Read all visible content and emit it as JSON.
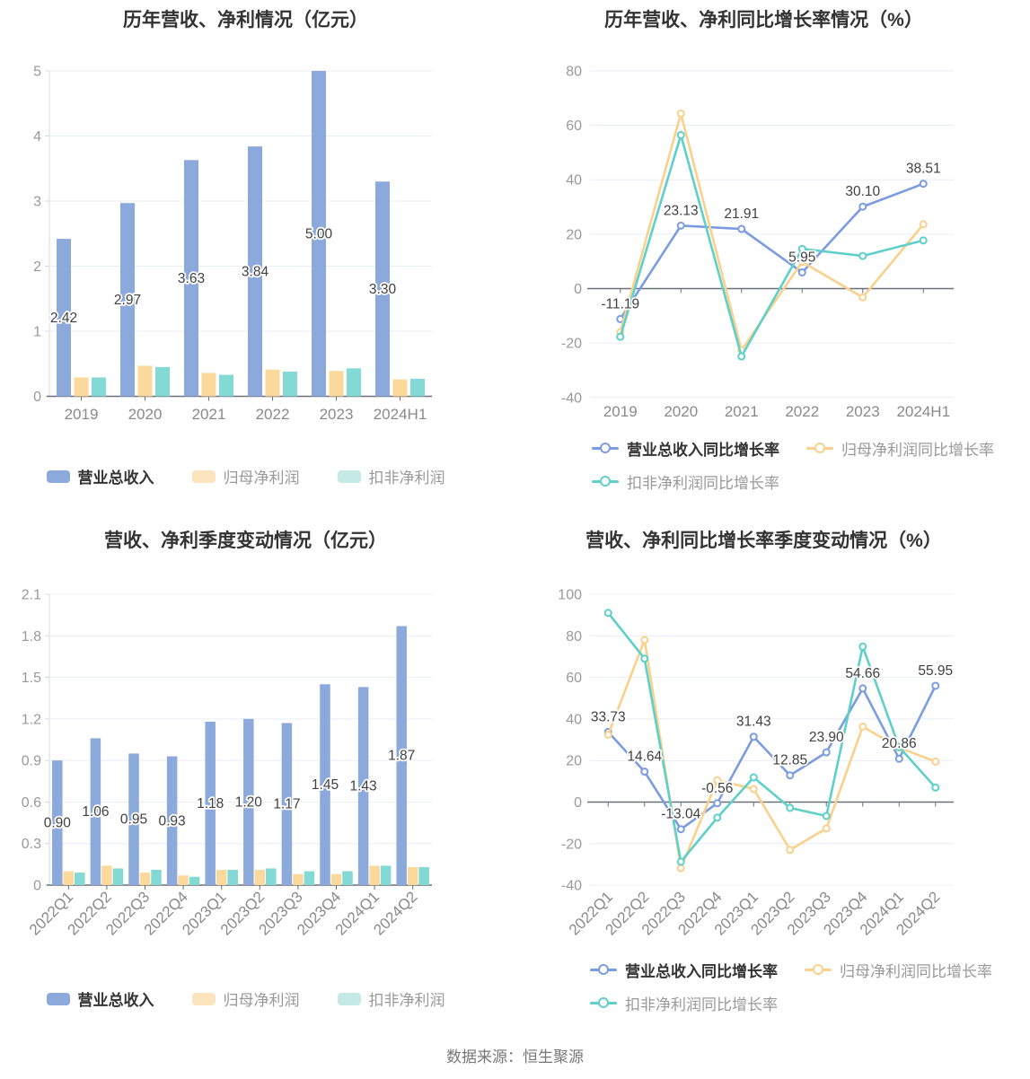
{
  "page": {
    "source_text": "数据来源：恒生聚源"
  },
  "colors": {
    "revenue_bar": "#8CA9DC",
    "net_profit_bar": "#FBD99D",
    "deducted_profit_bar": "#83D9D3",
    "revenue_line": "#7B9CE0",
    "net_profit_line": "#F9D18C",
    "deducted_profit_line": "#5ED0C9",
    "grid_line": "#E9EDF5",
    "axis_dark": "#6E7079",
    "axis_light": "#D7DBE3",
    "axis_text": "#999999",
    "value_label_text": "#404040",
    "title_text": "#333333"
  },
  "chart_data": [
    {
      "id": "annual-amounts",
      "type": "bar",
      "title": "历年营收、净利情况（亿元）",
      "categories": [
        "2019",
        "2020",
        "2021",
        "2022",
        "2023",
        "2024H1"
      ],
      "series": [
        {
          "name": "营业总收入",
          "values": [
            2.42,
            2.97,
            3.63,
            3.84,
            5.0,
            3.3
          ],
          "labels": [
            "2.42",
            "2.97",
            "3.63",
            "3.84",
            "5.00",
            "3.30"
          ]
        },
        {
          "name": "归母净利润",
          "values": [
            0.29,
            0.47,
            0.36,
            0.41,
            0.39,
            0.26
          ]
        },
        {
          "name": "扣非净利润",
          "values": [
            0.29,
            0.45,
            0.33,
            0.38,
            0.43,
            0.27
          ]
        }
      ],
      "ylim": [
        0,
        5
      ],
      "yticks": [
        5,
        4,
        3,
        2,
        1,
        0
      ],
      "ytick_labels": [
        "5",
        "4",
        "3",
        "2",
        "1",
        "0"
      ],
      "grid": true,
      "legend_position": "bottom"
    },
    {
      "id": "annual-growth-rates",
      "type": "line",
      "title": "历年营收、净利同比增长率情况（%）",
      "categories": [
        "2019",
        "2020",
        "2021",
        "2022",
        "2023",
        "2024H1"
      ],
      "series": [
        {
          "name": "营业总收入同比增长率",
          "values": [
            -11.19,
            23.13,
            21.91,
            5.95,
            30.1,
            38.51
          ],
          "labels": [
            "-11.19",
            "23.13",
            "21.91",
            "5.95",
            "30.10",
            "38.51"
          ]
        },
        {
          "name": "归母净利润同比增长率",
          "values": [
            -16.0,
            64.3,
            -22.6,
            9.8,
            -3.2,
            23.6
          ]
        },
        {
          "name": "扣非净利润同比增长率",
          "values": [
            -17.7,
            56.4,
            -24.9,
            14.6,
            12.0,
            17.7
          ]
        }
      ],
      "ylim": [
        -40,
        80
      ],
      "yticks": [
        80,
        60,
        40,
        20,
        0,
        -20,
        -40
      ],
      "ytick_labels": [
        "80",
        "60",
        "40",
        "20",
        "0",
        "-20",
        "-40"
      ],
      "grid": true,
      "legend_position": "bottom"
    },
    {
      "id": "quarterly-amounts",
      "type": "bar",
      "title": "营收、净利季度变动情况（亿元）",
      "categories": [
        "2022Q1",
        "2022Q2",
        "2022Q3",
        "2022Q4",
        "2023Q1",
        "2023Q2",
        "2023Q3",
        "2023Q4",
        "2024Q1",
        "2024Q2"
      ],
      "series": [
        {
          "name": "营业总收入",
          "values": [
            0.9,
            1.06,
            0.95,
            0.93,
            1.18,
            1.2,
            1.17,
            1.45,
            1.43,
            1.87
          ],
          "labels": [
            "0.90",
            "1.06",
            "0.95",
            "0.93",
            "1.18",
            "1.20",
            "1.17",
            "1.45",
            "1.43",
            "1.87"
          ]
        },
        {
          "name": "归母净利润",
          "values": [
            0.1,
            0.14,
            0.09,
            0.07,
            0.11,
            0.11,
            0.08,
            0.08,
            0.14,
            0.13
          ]
        },
        {
          "name": "扣非净利润",
          "values": [
            0.09,
            0.12,
            0.11,
            0.06,
            0.11,
            0.12,
            0.1,
            0.1,
            0.14,
            0.13
          ]
        }
      ],
      "ylim": [
        0,
        2.1
      ],
      "yticks": [
        2.1,
        1.8,
        1.5,
        1.2,
        0.9,
        0.6,
        0.3,
        0
      ],
      "ytick_labels": [
        "2.1",
        "1.8",
        "1.5",
        "1.2",
        "0.9",
        "0.6",
        "0.3",
        "0"
      ],
      "grid": true,
      "legend_position": "bottom"
    },
    {
      "id": "quarterly-growth-rates",
      "type": "line",
      "title": "营收、净利同比增长率季度变动情况（%）",
      "categories": [
        "2022Q1",
        "2022Q2",
        "2022Q3",
        "2022Q4",
        "2023Q1",
        "2023Q2",
        "2023Q3",
        "2023Q4",
        "2024Q1",
        "2024Q2"
      ],
      "series": [
        {
          "name": "营业总收入同比增长率",
          "values": [
            33.73,
            14.64,
            -13.04,
            -0.56,
            31.43,
            12.85,
            23.9,
            54.66,
            20.86,
            55.95
          ],
          "labels": [
            "33.73",
            "14.64",
            "-13.04",
            "-0.56",
            "31.43",
            "12.85",
            "23.90",
            "54.66",
            "20.86",
            "55.95"
          ]
        },
        {
          "name": "归母净利润同比增长率",
          "values": [
            32.4,
            78.0,
            -31.8,
            10.5,
            6.3,
            -23.0,
            -12.7,
            36.3,
            26.2,
            19.5
          ]
        },
        {
          "name": "扣非净利润同比增长率",
          "values": [
            91.0,
            69.0,
            -28.7,
            -7.5,
            11.9,
            -2.8,
            -6.7,
            74.8,
            26.5,
            7.0
          ]
        }
      ],
      "ylim": [
        -40,
        100
      ],
      "yticks": [
        100,
        80,
        60,
        40,
        20,
        0,
        -20,
        -40
      ],
      "ytick_labels": [
        "100",
        "80",
        "60",
        "40",
        "20",
        "0",
        "-20",
        "-40"
      ],
      "grid": true,
      "legend_position": "bottom"
    }
  ]
}
